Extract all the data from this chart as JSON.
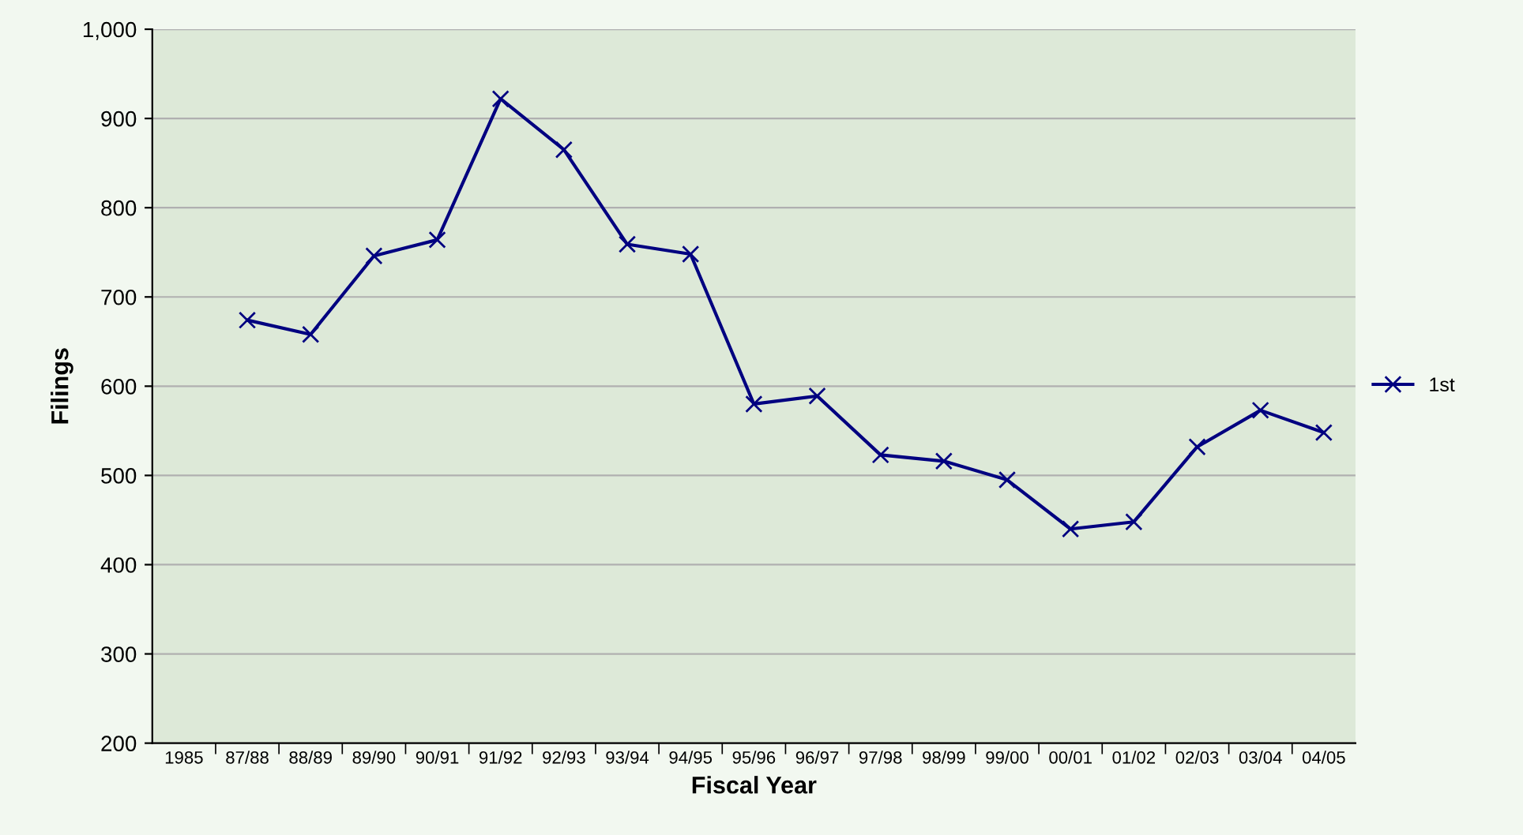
{
  "chart_data": {
    "type": "line",
    "xlabel": "Fiscal Year",
    "ylabel": "Filings",
    "categories": [
      "1985",
      "87/88",
      "88/89",
      "89/90",
      "90/91",
      "91/92",
      "92/93",
      "93/94",
      "94/95",
      "95/96",
      "96/97",
      "97/98",
      "98/99",
      "99/00",
      "00/01",
      "01/02",
      "02/03",
      "03/04",
      "04/05"
    ],
    "series": [
      {
        "name": "1st",
        "color": "#000080",
        "values": [
          null,
          674,
          658,
          746,
          764,
          922,
          865,
          759,
          748,
          580,
          589,
          523,
          516,
          495,
          440,
          448,
          532,
          573,
          548
        ]
      }
    ],
    "ylim": [
      200,
      1000
    ],
    "yticks": [
      200,
      300,
      400,
      500,
      600,
      700,
      800,
      900,
      {
        "value": 1000,
        "label": "1,000"
      }
    ],
    "grid": "y",
    "legend": "right",
    "marker": "cross",
    "line_style": "solid"
  }
}
